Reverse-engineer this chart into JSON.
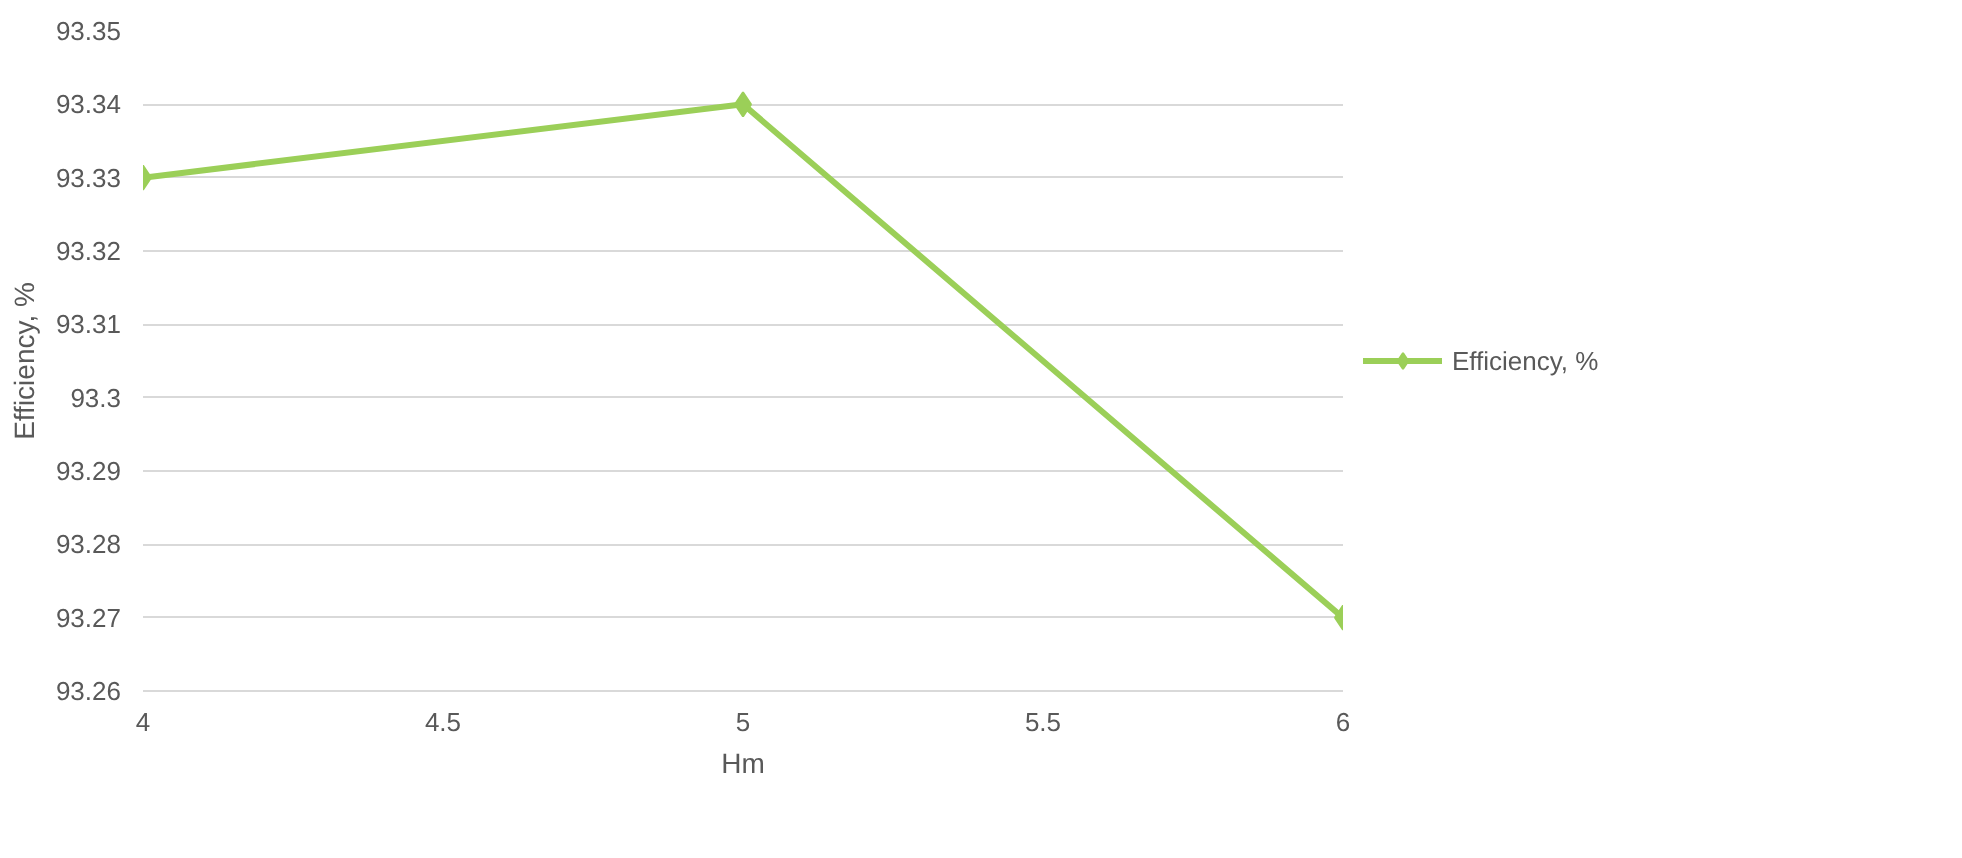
{
  "chart_data": {
    "type": "line",
    "xlabel": "Hm",
    "ylabel": "Efficiency, %",
    "x": [
      4,
      5,
      6
    ],
    "series": [
      {
        "name": "Efficiency, %",
        "color": "#9bcf58",
        "values": [
          93.33,
          93.34,
          93.27
        ]
      }
    ],
    "xlim": [
      4,
      6
    ],
    "xticks": [
      4,
      4.5,
      5,
      5.5,
      6
    ],
    "ylim": [
      93.26,
      93.35
    ],
    "yticks": [
      93.26,
      93.27,
      93.28,
      93.29,
      93.3,
      93.31,
      93.32,
      93.33,
      93.34,
      93.35
    ],
    "grid": "y",
    "legend": "right",
    "marker": "diamond",
    "line_style": "solid"
  }
}
